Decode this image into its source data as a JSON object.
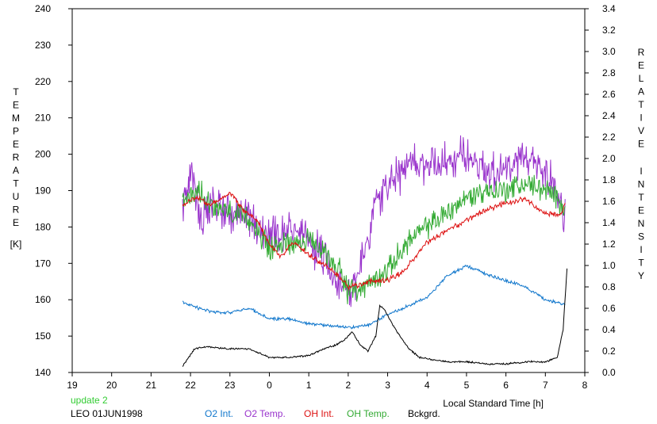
{
  "chart_data": {
    "type": "line",
    "xlabel": "Local Standard Time [h]",
    "ylabel_left": [
      "T",
      "E",
      "M",
      "P",
      "E",
      "R",
      "A",
      "T",
      "U",
      "R",
      "E"
    ],
    "ylabel_left_unit": "[K]",
    "ylabel_right_words": [
      [
        "R",
        "E",
        "L",
        "A",
        "T",
        "I",
        "V",
        "E"
      ],
      [
        "I",
        "N",
        "T",
        "E",
        "N",
        "S",
        "I",
        "T",
        "Y"
      ]
    ],
    "x_ticks": [
      {
        "v": 19,
        "label": "19"
      },
      {
        "v": 20,
        "label": "20"
      },
      {
        "v": 21,
        "label": "21"
      },
      {
        "v": 22,
        "label": "22"
      },
      {
        "v": 23,
        "label": "23"
      },
      {
        "v": 24,
        "label": "0"
      },
      {
        "v": 25,
        "label": "1"
      },
      {
        "v": 26,
        "label": "2"
      },
      {
        "v": 27,
        "label": "3"
      },
      {
        "v": 28,
        "label": "4"
      },
      {
        "v": 29,
        "label": "5"
      },
      {
        "v": 30,
        "label": "6"
      },
      {
        "v": 31,
        "label": "7"
      },
      {
        "v": 32,
        "label": "8"
      }
    ],
    "xlim": [
      19,
      32
    ],
    "ylim_left": [
      140,
      240
    ],
    "ylim_right": [
      0.0,
      3.4
    ],
    "left_ticks": [
      "140",
      "150",
      "160",
      "170",
      "180",
      "190",
      "200",
      "210",
      "220",
      "230",
      "240"
    ],
    "right_ticks": [
      "0.0",
      "0.2",
      "0.4",
      "0.6",
      "0.8",
      "1.0",
      "1.2",
      "1.4",
      "1.6",
      "1.8",
      "2.0",
      "2.2",
      "2.4",
      "2.6",
      "2.8",
      "3.0",
      "3.2",
      "3.4"
    ],
    "grid": false,
    "series": [
      {
        "name": "O2 Temp.",
        "axis": "left",
        "color": "#9933CC",
        "anchors": [
          [
            21.8,
            186
          ],
          [
            22.0,
            194
          ],
          [
            22.3,
            182
          ],
          [
            22.6,
            186
          ],
          [
            23.0,
            184
          ],
          [
            23.5,
            182
          ],
          [
            24.0,
            178
          ],
          [
            24.5,
            180
          ],
          [
            25.0,
            176
          ],
          [
            25.5,
            170
          ],
          [
            26.0,
            162
          ],
          [
            26.3,
            168
          ],
          [
            26.7,
            186
          ],
          [
            27.0,
            192
          ],
          [
            27.5,
            196
          ],
          [
            28.0,
            198
          ],
          [
            28.5,
            198
          ],
          [
            29.0,
            200
          ],
          [
            29.5,
            196
          ],
          [
            30.0,
            196
          ],
          [
            30.5,
            198
          ],
          [
            31.0,
            196
          ],
          [
            31.3,
            190
          ],
          [
            31.5,
            182
          ]
        ],
        "noise": 7
      },
      {
        "name": "OH Temp.",
        "axis": "left",
        "color": "#33AA33",
        "anchors": [
          [
            21.8,
            187
          ],
          [
            22.2,
            190
          ],
          [
            22.6,
            186
          ],
          [
            23.0,
            184
          ],
          [
            23.5,
            182
          ],
          [
            24.0,
            174
          ],
          [
            24.5,
            176
          ],
          [
            25.0,
            176
          ],
          [
            25.5,
            172
          ],
          [
            25.8,
            168
          ],
          [
            26.0,
            162
          ],
          [
            26.5,
            164
          ],
          [
            27.0,
            168
          ],
          [
            27.5,
            176
          ],
          [
            28.0,
            180
          ],
          [
            28.5,
            184
          ],
          [
            29.0,
            188
          ],
          [
            29.5,
            190
          ],
          [
            30.0,
            190
          ],
          [
            30.5,
            192
          ],
          [
            31.0,
            190
          ],
          [
            31.5,
            186
          ]
        ],
        "noise": 4
      },
      {
        "name": "OH Int.",
        "axis": "right",
        "color": "#DD1111",
        "anchors": [
          [
            21.8,
            1.56
          ],
          [
            22.2,
            1.64
          ],
          [
            22.5,
            1.56
          ],
          [
            23.0,
            1.68
          ],
          [
            23.3,
            1.54
          ],
          [
            23.7,
            1.42
          ],
          [
            24.0,
            1.2
          ],
          [
            24.3,
            1.08
          ],
          [
            24.6,
            1.22
          ],
          [
            25.0,
            1.1
          ],
          [
            25.5,
            0.98
          ],
          [
            25.8,
            0.88
          ],
          [
            26.0,
            0.8
          ],
          [
            26.3,
            0.82
          ],
          [
            26.7,
            0.86
          ],
          [
            27.0,
            0.86
          ],
          [
            27.4,
            0.94
          ],
          [
            28.0,
            1.22
          ],
          [
            28.4,
            1.3
          ],
          [
            29.0,
            1.42
          ],
          [
            29.5,
            1.52
          ],
          [
            30.0,
            1.58
          ],
          [
            30.5,
            1.62
          ],
          [
            31.0,
            1.48
          ],
          [
            31.4,
            1.48
          ],
          [
            31.5,
            1.58
          ]
        ],
        "noise": 0.03
      },
      {
        "name": "O2 Int.",
        "axis": "right",
        "color": "#1177CC",
        "anchors": [
          [
            21.8,
            0.66
          ],
          [
            22.2,
            0.6
          ],
          [
            22.6,
            0.56
          ],
          [
            23.0,
            0.56
          ],
          [
            23.5,
            0.6
          ],
          [
            24.0,
            0.5
          ],
          [
            24.5,
            0.5
          ],
          [
            25.0,
            0.46
          ],
          [
            25.5,
            0.44
          ],
          [
            26.0,
            0.42
          ],
          [
            26.5,
            0.44
          ],
          [
            27.0,
            0.54
          ],
          [
            27.5,
            0.62
          ],
          [
            28.0,
            0.7
          ],
          [
            28.5,
            0.9
          ],
          [
            29.0,
            1.0
          ],
          [
            29.5,
            0.92
          ],
          [
            30.0,
            0.86
          ],
          [
            30.5,
            0.8
          ],
          [
            31.0,
            0.68
          ],
          [
            31.5,
            0.64
          ]
        ],
        "noise": 0.018
      },
      {
        "name": "Bckgrd.",
        "axis": "right",
        "color": "#000000",
        "anchors": [
          [
            21.8,
            0.06
          ],
          [
            22.1,
            0.22
          ],
          [
            22.4,
            0.24
          ],
          [
            23.0,
            0.22
          ],
          [
            23.5,
            0.22
          ],
          [
            24.0,
            0.14
          ],
          [
            24.5,
            0.14
          ],
          [
            25.0,
            0.16
          ],
          [
            25.4,
            0.22
          ],
          [
            25.7,
            0.26
          ],
          [
            25.9,
            0.3
          ],
          [
            26.1,
            0.38
          ],
          [
            26.3,
            0.26
          ],
          [
            26.5,
            0.2
          ],
          [
            26.7,
            0.34
          ],
          [
            26.8,
            0.62
          ],
          [
            26.9,
            0.6
          ],
          [
            27.2,
            0.4
          ],
          [
            27.5,
            0.24
          ],
          [
            27.8,
            0.14
          ],
          [
            28.5,
            0.1
          ],
          [
            29.0,
            0.1
          ],
          [
            29.5,
            0.08
          ],
          [
            30.0,
            0.08
          ],
          [
            30.5,
            0.1
          ],
          [
            31.0,
            0.1
          ],
          [
            31.3,
            0.14
          ],
          [
            31.45,
            0.4
          ],
          [
            31.55,
            0.98
          ]
        ],
        "noise": 0.01
      }
    ]
  },
  "footer": {
    "update": "update 2",
    "site_date": "LEO 01JUN1998"
  },
  "legend": [
    {
      "label": "O2 Int.",
      "color": "#1177CC"
    },
    {
      "label": "O2 Temp.",
      "color": "#9933CC"
    },
    {
      "label": "OH Int.",
      "color": "#DD1111"
    },
    {
      "label": "OH Temp.",
      "color": "#33AA33"
    },
    {
      "label": "Bckgrd.",
      "color": "#000000"
    }
  ]
}
